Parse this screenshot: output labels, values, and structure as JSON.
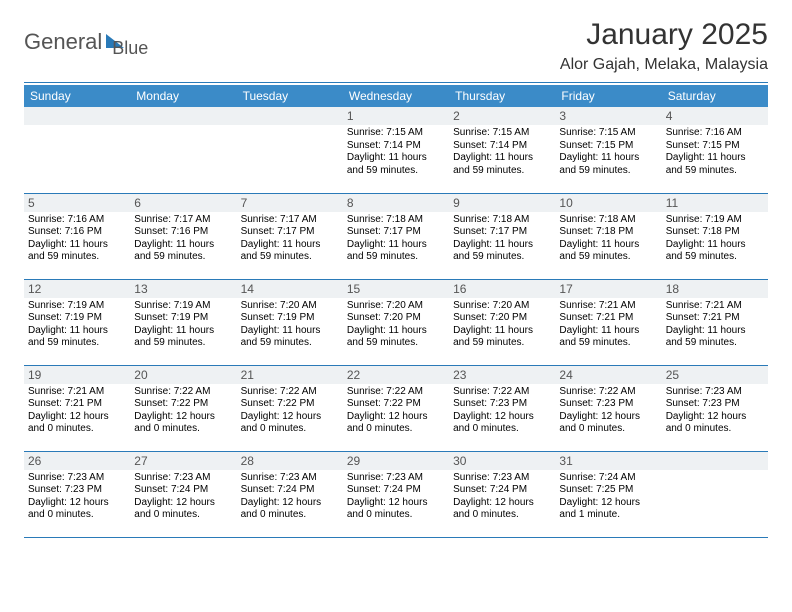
{
  "brand": {
    "word1": "General",
    "word2": "Blue"
  },
  "title": "January 2025",
  "subtitle": "Alor Gajah, Melaka, Malaysia",
  "colors": {
    "headerBg": "#3b8bc8",
    "headerText": "#ffffff",
    "rule": "#2a7ab8",
    "dayBg": "#eef1f3",
    "brandGray": "#555555",
    "brandBlue": "#2a7ab8",
    "pageBg": "#ffffff"
  },
  "fonts": {
    "title_size_pt": 22,
    "subtitle_size_pt": 12,
    "weekday_size_pt": 9,
    "daynum_size_pt": 9,
    "info_size_pt": 7.5
  },
  "weekdays": [
    "Sunday",
    "Monday",
    "Tuesday",
    "Wednesday",
    "Thursday",
    "Friday",
    "Saturday"
  ],
  "weeks": [
    [
      {
        "day": "",
        "sunrise": "",
        "sunset": "",
        "daylight": ""
      },
      {
        "day": "",
        "sunrise": "",
        "sunset": "",
        "daylight": ""
      },
      {
        "day": "",
        "sunrise": "",
        "sunset": "",
        "daylight": ""
      },
      {
        "day": "1",
        "sunrise": "Sunrise: 7:15 AM",
        "sunset": "Sunset: 7:14 PM",
        "daylight": "Daylight: 11 hours and 59 minutes."
      },
      {
        "day": "2",
        "sunrise": "Sunrise: 7:15 AM",
        "sunset": "Sunset: 7:14 PM",
        "daylight": "Daylight: 11 hours and 59 minutes."
      },
      {
        "day": "3",
        "sunrise": "Sunrise: 7:15 AM",
        "sunset": "Sunset: 7:15 PM",
        "daylight": "Daylight: 11 hours and 59 minutes."
      },
      {
        "day": "4",
        "sunrise": "Sunrise: 7:16 AM",
        "sunset": "Sunset: 7:15 PM",
        "daylight": "Daylight: 11 hours and 59 minutes."
      }
    ],
    [
      {
        "day": "5",
        "sunrise": "Sunrise: 7:16 AM",
        "sunset": "Sunset: 7:16 PM",
        "daylight": "Daylight: 11 hours and 59 minutes."
      },
      {
        "day": "6",
        "sunrise": "Sunrise: 7:17 AM",
        "sunset": "Sunset: 7:16 PM",
        "daylight": "Daylight: 11 hours and 59 minutes."
      },
      {
        "day": "7",
        "sunrise": "Sunrise: 7:17 AM",
        "sunset": "Sunset: 7:17 PM",
        "daylight": "Daylight: 11 hours and 59 minutes."
      },
      {
        "day": "8",
        "sunrise": "Sunrise: 7:18 AM",
        "sunset": "Sunset: 7:17 PM",
        "daylight": "Daylight: 11 hours and 59 minutes."
      },
      {
        "day": "9",
        "sunrise": "Sunrise: 7:18 AM",
        "sunset": "Sunset: 7:17 PM",
        "daylight": "Daylight: 11 hours and 59 minutes."
      },
      {
        "day": "10",
        "sunrise": "Sunrise: 7:18 AM",
        "sunset": "Sunset: 7:18 PM",
        "daylight": "Daylight: 11 hours and 59 minutes."
      },
      {
        "day": "11",
        "sunrise": "Sunrise: 7:19 AM",
        "sunset": "Sunset: 7:18 PM",
        "daylight": "Daylight: 11 hours and 59 minutes."
      }
    ],
    [
      {
        "day": "12",
        "sunrise": "Sunrise: 7:19 AM",
        "sunset": "Sunset: 7:19 PM",
        "daylight": "Daylight: 11 hours and 59 minutes."
      },
      {
        "day": "13",
        "sunrise": "Sunrise: 7:19 AM",
        "sunset": "Sunset: 7:19 PM",
        "daylight": "Daylight: 11 hours and 59 minutes."
      },
      {
        "day": "14",
        "sunrise": "Sunrise: 7:20 AM",
        "sunset": "Sunset: 7:19 PM",
        "daylight": "Daylight: 11 hours and 59 minutes."
      },
      {
        "day": "15",
        "sunrise": "Sunrise: 7:20 AM",
        "sunset": "Sunset: 7:20 PM",
        "daylight": "Daylight: 11 hours and 59 minutes."
      },
      {
        "day": "16",
        "sunrise": "Sunrise: 7:20 AM",
        "sunset": "Sunset: 7:20 PM",
        "daylight": "Daylight: 11 hours and 59 minutes."
      },
      {
        "day": "17",
        "sunrise": "Sunrise: 7:21 AM",
        "sunset": "Sunset: 7:21 PM",
        "daylight": "Daylight: 11 hours and 59 minutes."
      },
      {
        "day": "18",
        "sunrise": "Sunrise: 7:21 AM",
        "sunset": "Sunset: 7:21 PM",
        "daylight": "Daylight: 11 hours and 59 minutes."
      }
    ],
    [
      {
        "day": "19",
        "sunrise": "Sunrise: 7:21 AM",
        "sunset": "Sunset: 7:21 PM",
        "daylight": "Daylight: 12 hours and 0 minutes."
      },
      {
        "day": "20",
        "sunrise": "Sunrise: 7:22 AM",
        "sunset": "Sunset: 7:22 PM",
        "daylight": "Daylight: 12 hours and 0 minutes."
      },
      {
        "day": "21",
        "sunrise": "Sunrise: 7:22 AM",
        "sunset": "Sunset: 7:22 PM",
        "daylight": "Daylight: 12 hours and 0 minutes."
      },
      {
        "day": "22",
        "sunrise": "Sunrise: 7:22 AM",
        "sunset": "Sunset: 7:22 PM",
        "daylight": "Daylight: 12 hours and 0 minutes."
      },
      {
        "day": "23",
        "sunrise": "Sunrise: 7:22 AM",
        "sunset": "Sunset: 7:23 PM",
        "daylight": "Daylight: 12 hours and 0 minutes."
      },
      {
        "day": "24",
        "sunrise": "Sunrise: 7:22 AM",
        "sunset": "Sunset: 7:23 PM",
        "daylight": "Daylight: 12 hours and 0 minutes."
      },
      {
        "day": "25",
        "sunrise": "Sunrise: 7:23 AM",
        "sunset": "Sunset: 7:23 PM",
        "daylight": "Daylight: 12 hours and 0 minutes."
      }
    ],
    [
      {
        "day": "26",
        "sunrise": "Sunrise: 7:23 AM",
        "sunset": "Sunset: 7:23 PM",
        "daylight": "Daylight: 12 hours and 0 minutes."
      },
      {
        "day": "27",
        "sunrise": "Sunrise: 7:23 AM",
        "sunset": "Sunset: 7:24 PM",
        "daylight": "Daylight: 12 hours and 0 minutes."
      },
      {
        "day": "28",
        "sunrise": "Sunrise: 7:23 AM",
        "sunset": "Sunset: 7:24 PM",
        "daylight": "Daylight: 12 hours and 0 minutes."
      },
      {
        "day": "29",
        "sunrise": "Sunrise: 7:23 AM",
        "sunset": "Sunset: 7:24 PM",
        "daylight": "Daylight: 12 hours and 0 minutes."
      },
      {
        "day": "30",
        "sunrise": "Sunrise: 7:23 AM",
        "sunset": "Sunset: 7:24 PM",
        "daylight": "Daylight: 12 hours and 0 minutes."
      },
      {
        "day": "31",
        "sunrise": "Sunrise: 7:24 AM",
        "sunset": "Sunset: 7:25 PM",
        "daylight": "Daylight: 12 hours and 1 minute."
      },
      {
        "day": "",
        "sunrise": "",
        "sunset": "",
        "daylight": ""
      }
    ]
  ]
}
